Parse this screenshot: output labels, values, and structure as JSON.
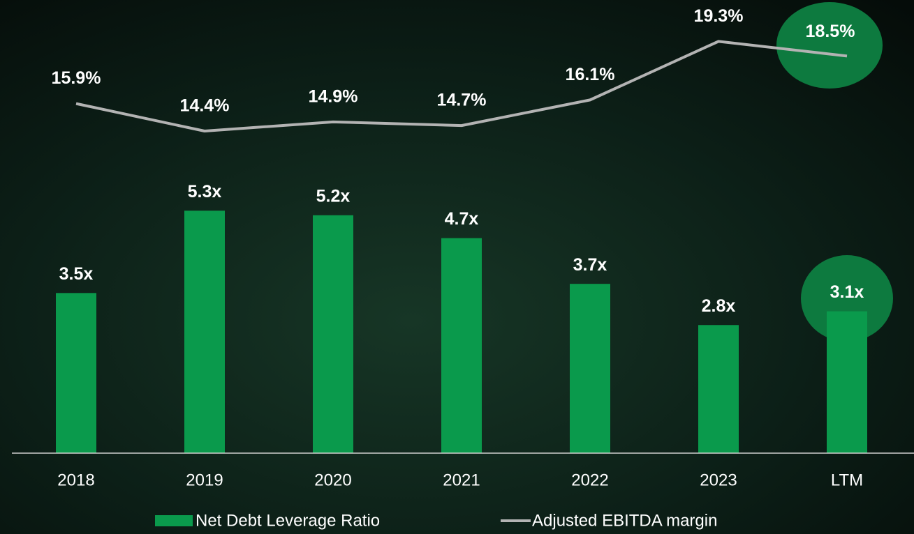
{
  "chart_data": {
    "type": "bar+line",
    "categories": [
      "2018",
      "2019",
      "2020",
      "2021",
      "2022",
      "2023",
      "LTM"
    ],
    "series": [
      {
        "name": "Net Debt Leverage Ratio",
        "type": "bar",
        "color": "#0a9a4c",
        "values": [
          3.5,
          5.3,
          5.2,
          4.7,
          3.7,
          2.8,
          3.1
        ],
        "value_labels": [
          "3.5x",
          "5.3x",
          "5.2x",
          "4.7x",
          "3.7x",
          "2.8x",
          "3.1x"
        ]
      },
      {
        "name": "Adjusted EBITDA margin",
        "type": "line",
        "axis": "y2",
        "color": "#b3b3b3",
        "values": [
          15.9,
          14.4,
          14.9,
          14.7,
          16.1,
          19.3,
          18.5
        ],
        "value_labels": [
          "15.9%",
          "14.4%",
          "14.9%",
          "14.7%",
          "16.1%",
          "19.3%",
          "18.5%"
        ]
      }
    ],
    "ylim": [
      0,
      9.6
    ],
    "y2lim": [
      -3.2,
      20.8
    ]
  }
}
